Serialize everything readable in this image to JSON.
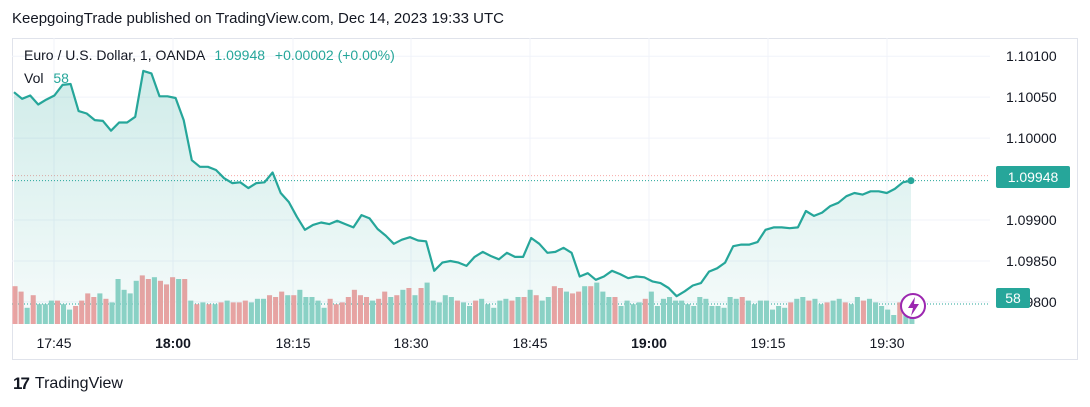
{
  "header": {
    "publisher_line": "KeepgoingTrade published on TradingView.com, Dec 14, 2023 19:33 UTC"
  },
  "legend": {
    "symbol": "Euro / U.S. Dollar, 1, OANDA",
    "last": "1.09948",
    "change": "+0.00002 (+0.00%)",
    "vol_label": "Vol",
    "vol_value": "58"
  },
  "badges": {
    "price": "1.09948",
    "volume": "58"
  },
  "footer": {
    "brand": "TradingView",
    "brand_mark": "17"
  },
  "colors": {
    "line": "#26a69a",
    "area": "#26a69a",
    "vol_up": "#8fd3c7",
    "vol_down": "#f0a3a3",
    "grid": "#f0f3fa",
    "lightning": "#9c27b0"
  },
  "chart_data": {
    "type": "line",
    "title": "",
    "xlabel": "",
    "ylabel": "",
    "ylim": [
      1.09795,
      1.1011
    ],
    "y_ticks": [
      "1.10100",
      "1.10050",
      "1.10000",
      "1.09900",
      "1.09850",
      "1.09800"
    ],
    "y_tick_values": [
      1.101,
      1.1005,
      1.1,
      1.099,
      1.0985,
      1.098
    ],
    "x_ticks": [
      {
        "label": "17:45",
        "minute": 0,
        "bold": false
      },
      {
        "label": "18:00",
        "minute": 15,
        "bold": true
      },
      {
        "label": "18:15",
        "minute": 30,
        "bold": false
      },
      {
        "label": "18:30",
        "minute": 45,
        "bold": false
      },
      {
        "label": "18:45",
        "minute": 60,
        "bold": false
      },
      {
        "label": "19:00",
        "minute": 75,
        "bold": true
      },
      {
        "label": "19:15",
        "minute": 90,
        "bold": false
      },
      {
        "label": "19:30",
        "minute": 105,
        "bold": false
      }
    ],
    "series": [
      {
        "values": [
          1.10056,
          1.10048,
          1.10052,
          1.10041,
          1.10047,
          1.10052,
          1.10065,
          1.10066,
          1.10033,
          1.1003,
          1.10022,
          1.10021,
          1.10009,
          1.10019,
          1.10019,
          1.10026,
          1.10082,
          1.10079,
          1.10051,
          1.10051,
          1.10049,
          1.10022,
          1.09973,
          1.09965,
          1.09965,
          1.09961,
          1.09951,
          1.09945,
          1.09946,
          1.09939,
          1.09945,
          1.09946,
          1.09958,
          1.09933,
          1.09922,
          1.09904,
          1.09888,
          1.09894,
          1.09897,
          1.09895,
          1.09899,
          1.09895,
          1.09891,
          1.09906,
          1.09902,
          1.09889,
          1.09881,
          1.09871,
          1.09876,
          1.09879,
          1.09875,
          1.09874,
          1.09838,
          1.09848,
          1.0985,
          1.09848,
          1.09844,
          1.09855,
          1.09861,
          1.09856,
          1.09852,
          1.0986,
          1.09855,
          1.09855,
          1.09878,
          1.09871,
          1.0986,
          1.09861,
          1.09866,
          1.0986,
          1.09831,
          1.09835,
          1.09827,
          1.09831,
          1.09838,
          1.09834,
          1.09829,
          1.09831,
          1.0983,
          1.09825,
          1.09823,
          1.09817,
          1.09807,
          1.09813,
          1.0982,
          1.09823,
          1.09837,
          1.09841,
          1.09848,
          1.09868,
          1.0987,
          1.0987,
          1.09873,
          1.09888,
          1.09891,
          1.09891,
          1.0989,
          1.09891,
          1.09911,
          1.09905,
          1.09909,
          1.09917,
          1.09921,
          1.09929,
          1.09933,
          1.09931,
          1.09935,
          1.09935,
          1.09933,
          1.09938,
          1.09946,
          1.09948
        ]
      }
    ],
    "volume": {
      "values": [
        42,
        36,
        18,
        32,
        22,
        22,
        26,
        26,
        22,
        16,
        20,
        26,
        34,
        30,
        34,
        28,
        24,
        50,
        38,
        34,
        48,
        54,
        50,
        52,
        48,
        44,
        52,
        50,
        50,
        26,
        22,
        24,
        22,
        22,
        24,
        26,
        24,
        24,
        26,
        24,
        28,
        28,
        32,
        30,
        36,
        32,
        32,
        38,
        30,
        30,
        26,
        18,
        28,
        22,
        24,
        30,
        38,
        32,
        30,
        26,
        28,
        36,
        30,
        32,
        38,
        40,
        32,
        40,
        46,
        26,
        24,
        32,
        30,
        26,
        24,
        20,
        26,
        28,
        22,
        18,
        26,
        28,
        26,
        30,
        30,
        38,
        32,
        26,
        30,
        42,
        40,
        36,
        34,
        36,
        42,
        42,
        46,
        36,
        30,
        30,
        20,
        26,
        22,
        24,
        28,
        36,
        20,
        28,
        30,
        26,
        26,
        22,
        20,
        30,
        28,
        20,
        20,
        18,
        30,
        28,
        30,
        26,
        22,
        26,
        26,
        16,
        20,
        18,
        24,
        28,
        30,
        26,
        28,
        22,
        24,
        26,
        28,
        24,
        22,
        30,
        26,
        28,
        24,
        20,
        16,
        10,
        24,
        30,
        20
      ],
      "direction": [
        "d",
        "d",
        "u",
        "d",
        "u",
        "u",
        "u",
        "d",
        "u",
        "u",
        "d",
        "d",
        "d",
        "d",
        "u",
        "d",
        "u",
        "u",
        "u",
        "u",
        "u",
        "d",
        "d",
        "u",
        "d",
        "d",
        "d",
        "u",
        "d",
        "u",
        "d",
        "u",
        "d",
        "u",
        "d",
        "u",
        "d",
        "d",
        "d",
        "u",
        "u",
        "u",
        "d",
        "d",
        "d",
        "u",
        "d",
        "u",
        "u",
        "u",
        "u",
        "u",
        "d",
        "d",
        "d",
        "d",
        "d",
        "d",
        "d",
        "u",
        "d",
        "d",
        "u",
        "d",
        "u",
        "d",
        "u",
        "d",
        "u",
        "u",
        "u",
        "u",
        "u",
        "d",
        "u",
        "u",
        "d",
        "u",
        "u",
        "u",
        "u",
        "u",
        "d",
        "u",
        "d",
        "u",
        "d",
        "u",
        "u",
        "d",
        "d",
        "u",
        "d",
        "d",
        "u",
        "d",
        "u",
        "u",
        "u",
        "d",
        "u",
        "u",
        "u",
        "u",
        "d",
        "u",
        "u",
        "u",
        "u",
        "u",
        "u",
        "u",
        "u",
        "u",
        "u",
        "u",
        "u",
        "u",
        "u",
        "u",
        "d",
        "u",
        "u",
        "u",
        "u",
        "u",
        "u",
        "u",
        "d",
        "u",
        "u",
        "d",
        "u",
        "u",
        "d",
        "u",
        "u",
        "d",
        "u",
        "u",
        "d",
        "u",
        "u",
        "u",
        "u",
        "u",
        "d",
        "u",
        "u"
      ]
    },
    "grid": true,
    "legend_position": "top-left"
  }
}
